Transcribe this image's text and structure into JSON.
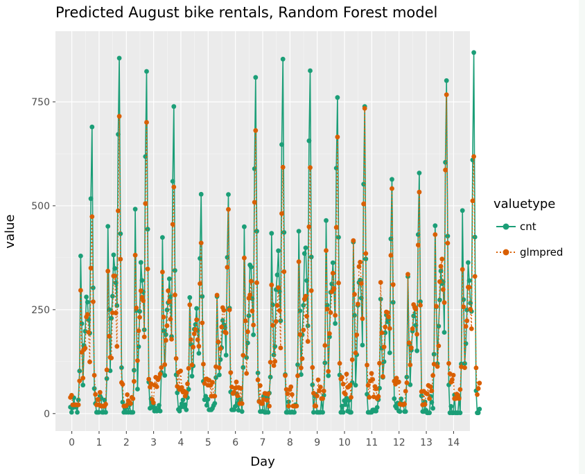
{
  "chart_data": {
    "type": "line",
    "title": "Predicted August bike rentals, Random Forest model",
    "xlabel": "Day",
    "ylabel": "value",
    "xlim": [
      -0.6,
      14.6
    ],
    "ylim": [
      -42,
      920
    ],
    "xticks": [
      0,
      1,
      2,
      3,
      4,
      5,
      6,
      7,
      8,
      9,
      10,
      11,
      12,
      13,
      14
    ],
    "yticks": [
      0,
      250,
      500,
      750
    ],
    "xtick_labels": [
      "0",
      "1",
      "2",
      "3",
      "4",
      "5",
      "6",
      "7",
      "8",
      "9",
      "10",
      "11",
      "12",
      "13",
      "14"
    ],
    "ytick_labels": [
      "0",
      "250",
      "500",
      "750"
    ],
    "grid": true,
    "legend": {
      "title": "valuetype",
      "placement": "right",
      "entries": [
        "cnt",
        "glmpred"
      ]
    },
    "series": [
      {
        "name": "cnt",
        "color": "#1b9e77",
        "line_style": "solid",
        "peaks": [
          680,
          890,
          865,
          740,
          548,
          528,
          858,
          868,
          862,
          810,
          730,
          568,
          578,
          818,
          855
        ],
        "troughs": [
          5,
          5,
          5,
          10,
          15,
          15,
          8,
          5,
          5,
          5,
          5,
          10,
          8,
          3
        ]
      },
      {
        "name": "glmpred",
        "color": "#d95f02",
        "line_style": "dotted",
        "peaks": [
          500,
          695,
          690,
          575,
          420,
          495,
          690,
          620,
          620,
          645,
          710,
          540,
          560,
          750,
          665
        ],
        "troughs": [
          35,
          30,
          35,
          75,
          70,
          70,
          40,
          30,
          30,
          60,
          65,
          60,
          35,
          60
        ]
      }
    ]
  }
}
